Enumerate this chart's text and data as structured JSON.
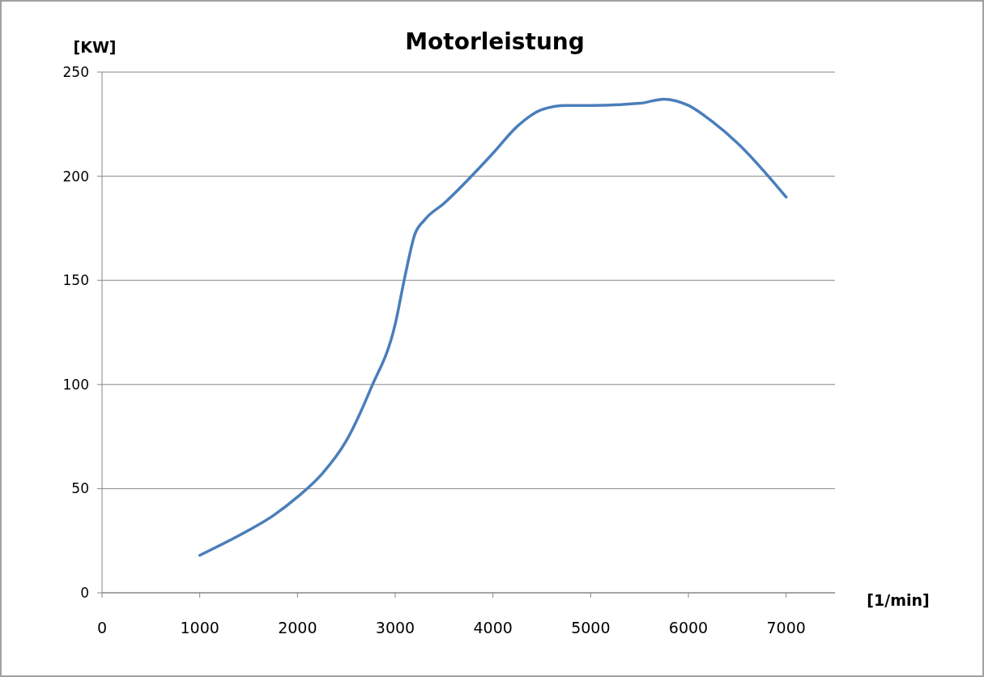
{
  "chart_data": {
    "type": "line",
    "title": "Motorleistung",
    "xlabel": "[1/min]",
    "ylabel": "[KW]",
    "x": [
      1000,
      1500,
      1750,
      2000,
      2250,
      2500,
      2750,
      3000,
      3100,
      3200,
      3300,
      3500,
      4000,
      4250,
      4500,
      4750,
      5000,
      5500,
      5750,
      6000,
      6250,
      6500,
      7000
    ],
    "series": [
      {
        "color": "#4a7ebb",
        "values": [
          18,
          30,
          37,
          46,
          57,
          73,
          98,
          129,
          152,
          172,
          179,
          187,
          211,
          224,
          232,
          234,
          234,
          235,
          237,
          234,
          226,
          216,
          190
        ]
      }
    ],
    "xlim": [
      0,
      7500
    ],
    "xticks": [
      0,
      1000,
      2000,
      3000,
      4000,
      5000,
      6000,
      7000
    ],
    "ylim": [
      0,
      250
    ],
    "yticks": [
      0,
      50,
      100,
      150,
      200,
      250
    ],
    "grid": "y",
    "marker": "none",
    "line_style": "solid"
  }
}
